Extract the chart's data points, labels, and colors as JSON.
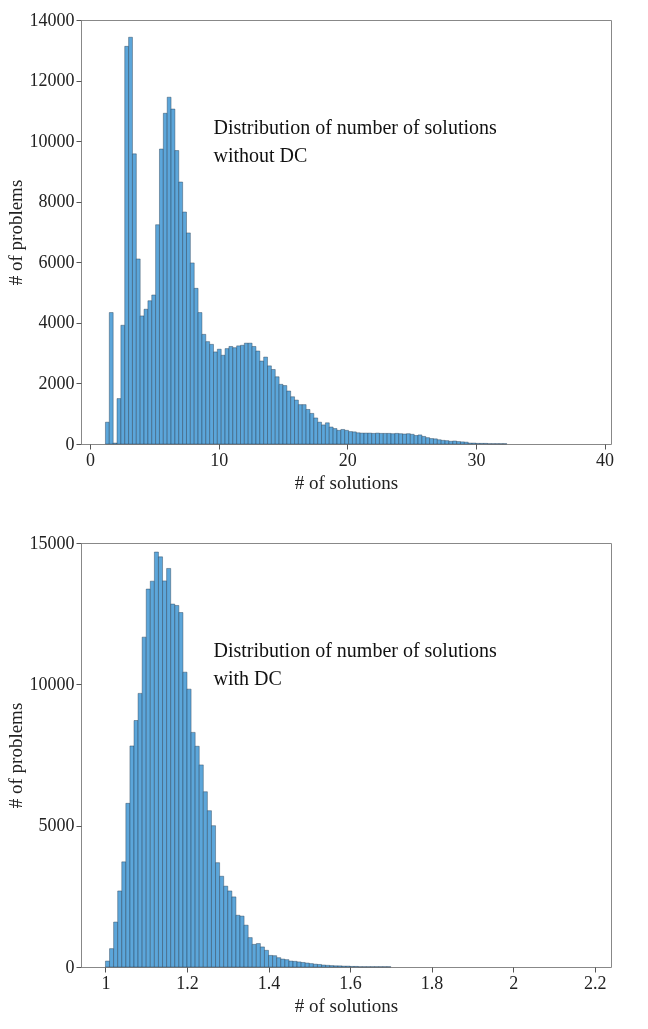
{
  "chart_data": [
    {
      "type": "histogram",
      "xlabel": "# of solutions",
      "ylabel": "# of problems",
      "annotations": [
        "Distribution of number of solutions\nwithout DC"
      ],
      "color": "#5ca6da",
      "grid": false,
      "bins": [
        1.2,
        1.5,
        1.8,
        2.1,
        2.4,
        2.7,
        3,
        3.3,
        3.6,
        3.9,
        4.2,
        4.5,
        4.8,
        5.1,
        5.4,
        5.7,
        6,
        6.3,
        6.6,
        6.9,
        7.2,
        7.5,
        7.8,
        8.1,
        8.4,
        8.7,
        9,
        9.3,
        9.6,
        9.9,
        10.2,
        10.5,
        10.8,
        11.1,
        11.4,
        11.7,
        12,
        12.3,
        12.6,
        12.9,
        13.2,
        13.5,
        13.8,
        14.1,
        14.4,
        14.7,
        15,
        15.3,
        15.6,
        15.9,
        16.2,
        16.5,
        16.8,
        17.1,
        17.4,
        17.7,
        18,
        18.3,
        18.6,
        18.9,
        19.2,
        19.5,
        19.8,
        20.1,
        20.4,
        20.7,
        21,
        21.3,
        21.6,
        21.9,
        22.2,
        22.5,
        22.8,
        23.1,
        23.4,
        23.7,
        24,
        24.3,
        24.6,
        24.9,
        25.2,
        25.5,
        25.8,
        26.1,
        26.4,
        26.7,
        27,
        27.3,
        27.6,
        27.9,
        28.2,
        28.5,
        28.8,
        29.1,
        29.4,
        29.7,
        30,
        30.3,
        30.6,
        30.9,
        31.2,
        31.5,
        31.8,
        32.1,
        32.4
      ],
      "values": [
        720,
        4340,
        30,
        1500,
        3920,
        13130,
        13430,
        9580,
        6110,
        4230,
        4450,
        4730,
        4920,
        7240,
        9740,
        10920,
        11450,
        11060,
        9690,
        8650,
        7660,
        6970,
        5980,
        5140,
        4340,
        3620,
        3380,
        3290,
        3040,
        3130,
        2930,
        3150,
        3220,
        3180,
        3240,
        3260,
        3330,
        3330,
        3220,
        3070,
        2740,
        2870,
        2580,
        2460,
        2220,
        1970,
        1930,
        1750,
        1560,
        1450,
        1300,
        1300,
        1140,
        1010,
        860,
        720,
        630,
        700,
        560,
        510,
        450,
        480,
        450,
        410,
        400,
        370,
        360,
        360,
        360,
        350,
        360,
        350,
        350,
        350,
        340,
        350,
        340,
        330,
        340,
        320,
        280,
        300,
        250,
        210,
        180,
        170,
        140,
        120,
        110,
        90,
        100,
        80,
        70,
        60,
        30,
        30,
        20,
        20,
        20,
        10,
        10,
        10,
        10,
        10
      ],
      "xlim": [
        -0.7,
        40.5
      ],
      "xticks": [
        0,
        10,
        20,
        30,
        40
      ],
      "ylim": [
        0,
        14000
      ],
      "yticks": [
        0,
        2000,
        4000,
        6000,
        8000,
        10000,
        12000,
        14000
      ]
    },
    {
      "type": "histogram",
      "xlabel": "# of solutions",
      "ylabel": "# of problems",
      "annotations": [
        "Distribution of number of solutions\nwith DC"
      ],
      "color": "#5ca6da",
      "grid": false,
      "bins": [
        1,
        1.01,
        1.02,
        1.03,
        1.04,
        1.05,
        1.06,
        1.07,
        1.08,
        1.09,
        1.1,
        1.11,
        1.12,
        1.13,
        1.14,
        1.15,
        1.16,
        1.17,
        1.18,
        1.19,
        1.2,
        1.21,
        1.22,
        1.23,
        1.24,
        1.25,
        1.26,
        1.27,
        1.28,
        1.29,
        1.3,
        1.31,
        1.32,
        1.33,
        1.34,
        1.35,
        1.36,
        1.37,
        1.38,
        1.39,
        1.4,
        1.41,
        1.42,
        1.43,
        1.44,
        1.45,
        1.46,
        1.47,
        1.48,
        1.49,
        1.5,
        1.51,
        1.52,
        1.53,
        1.54,
        1.55,
        1.56,
        1.57,
        1.58,
        1.59,
        1.6,
        1.61,
        1.62,
        1.63,
        1.64,
        1.65,
        1.66,
        1.67,
        1.68,
        1.69,
        1.7
      ],
      "values": [
        210,
        650,
        1590,
        2690,
        3720,
        5790,
        7820,
        8720,
        9680,
        11670,
        13370,
        13650,
        14680,
        14510,
        13660,
        14100,
        12840,
        12790,
        12540,
        10430,
        9830,
        8300,
        7810,
        7150,
        6200,
        5530,
        5000,
        3690,
        3210,
        2860,
        2690,
        2480,
        1830,
        1800,
        1480,
        1040,
        800,
        830,
        710,
        590,
        410,
        400,
        330,
        280,
        260,
        210,
        200,
        180,
        160,
        140,
        120,
        100,
        90,
        70,
        60,
        50,
        40,
        40,
        30,
        30,
        20,
        20,
        10,
        10,
        10,
        10,
        10,
        10,
        10,
        10
      ],
      "xlim": [
        0.94,
        2.24
      ],
      "xticks": [
        1,
        1.2,
        1.4,
        1.6,
        1.8,
        2,
        2.2
      ],
      "ylim": [
        0,
        15000
      ],
      "yticks": [
        0,
        5000,
        10000,
        15000
      ]
    }
  ]
}
